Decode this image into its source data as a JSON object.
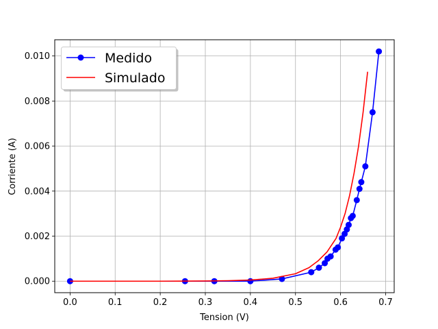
{
  "chart_data": {
    "type": "line",
    "title": "",
    "xlabel": "Tension (V)",
    "ylabel": "Corriente (A)",
    "xlim": [
      -0.034,
      0.719
    ],
    "ylim": [
      -0.00051,
      0.01072
    ],
    "xticks": [
      0.0,
      0.1,
      0.2,
      0.3,
      0.4,
      0.5,
      0.6,
      0.7
    ],
    "xtick_labels": [
      "0.0",
      "0.1",
      "0.2",
      "0.3",
      "0.4",
      "0.5",
      "0.6",
      "0.7"
    ],
    "yticks": [
      0.0,
      0.002,
      0.004,
      0.006,
      0.008,
      0.01
    ],
    "ytick_labels": [
      "0.000",
      "0.002",
      "0.004",
      "0.006",
      "0.008",
      "0.010"
    ],
    "grid": true,
    "legend_position": "top-left",
    "series": [
      {
        "name": "Medido",
        "color": "#0000ff",
        "marker": "circle",
        "x": [
          0.0,
          0.255,
          0.32,
          0.4,
          0.47,
          0.535,
          0.552,
          0.565,
          0.571,
          0.578,
          0.589,
          0.594,
          0.603,
          0.609,
          0.614,
          0.618,
          0.623,
          0.627,
          0.636,
          0.642,
          0.646,
          0.655,
          0.671,
          0.685
        ],
        "y": [
          0.0,
          0.0,
          0.0,
          0.0,
          0.0001,
          0.0004,
          0.0006,
          0.0008,
          0.001,
          0.0011,
          0.0014,
          0.0015,
          0.0019,
          0.0021,
          0.0023,
          0.0025,
          0.0028,
          0.0029,
          0.0036,
          0.0041,
          0.0044,
          0.0051,
          0.0075,
          0.0102
        ]
      },
      {
        "name": "Simulado",
        "color": "#ff0000",
        "marker": "none",
        "x": [
          0.0,
          0.1,
          0.2,
          0.3,
          0.35,
          0.4,
          0.45,
          0.5,
          0.53,
          0.55,
          0.57,
          0.59,
          0.6,
          0.61,
          0.62,
          0.63,
          0.64,
          0.65,
          0.66
        ],
        "y": [
          0.0,
          0.0,
          0.0,
          1e-05,
          2e-05,
          5e-05,
          0.00013,
          0.00033,
          0.0006,
          0.0009,
          0.0013,
          0.0019,
          0.0024,
          0.003,
          0.0038,
          0.0048,
          0.006,
          0.0075,
          0.0093
        ]
      }
    ]
  }
}
